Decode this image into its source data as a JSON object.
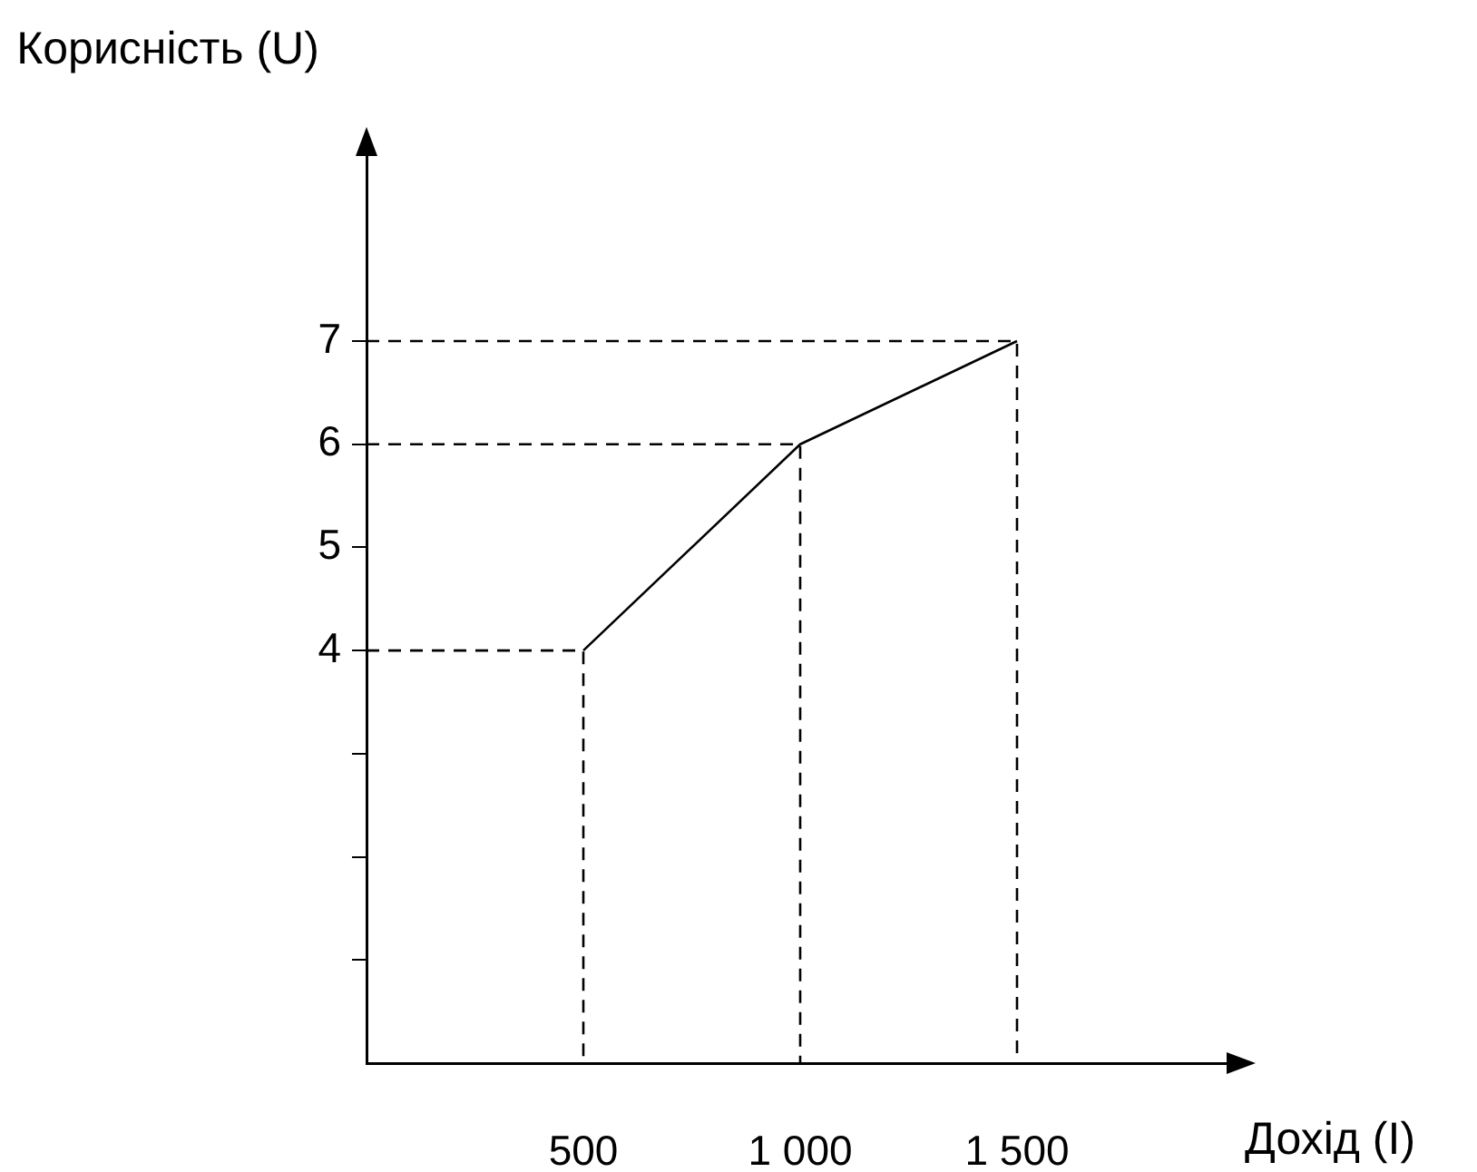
{
  "chart_data": {
    "type": "line",
    "xlabel": "Дохід (I)",
    "ylabel": "Корисність (U)",
    "series": [
      {
        "color": "#000000",
        "x": [
          500,
          1000,
          1500
        ],
        "values": [
          4,
          6,
          7
        ],
        "line_style": "solid"
      },
      {
        "color": "#000000",
        "x": [
          0,
          500,
          500
        ],
        "values": [
          4,
          4,
          0
        ],
        "line_style": "dashed"
      },
      {
        "color": "#000000",
        "x": [
          0,
          1000,
          1000
        ],
        "values": [
          6,
          6,
          0
        ],
        "line_style": "dashed"
      },
      {
        "color": "#000000",
        "x": [
          0,
          1500,
          1500
        ],
        "values": [
          7,
          7,
          0
        ],
        "line_style": "dashed"
      }
    ],
    "xlim": [
      0,
      2000
    ],
    "xticks": [
      {
        "value": 500,
        "label": "500"
      },
      {
        "value": 1000,
        "label": "1 000"
      },
      {
        "value": 1500,
        "label": "1 500"
      }
    ],
    "ylim": [
      0,
      8.9
    ],
    "yticks": [
      {
        "value": 1,
        "label": null
      },
      {
        "value": 2,
        "label": null
      },
      {
        "value": 3,
        "label": null
      },
      4,
      5,
      6,
      7
    ],
    "grid": false,
    "legend": false,
    "marker": "none"
  }
}
